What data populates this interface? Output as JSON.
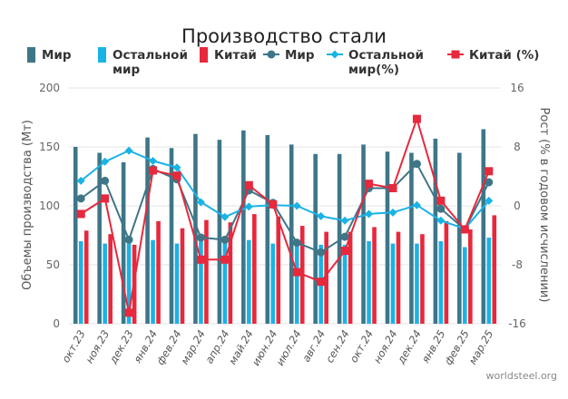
{
  "chart_data": {
    "type": "bar",
    "title": "Производство стали",
    "categories": [
      "окт.23",
      "ноя.23",
      "дек.23",
      "янв.24",
      "фев.24",
      "мар.24",
      "апр.24",
      "май.24",
      "июн.24",
      "июл.24",
      "авг.24",
      "сен.24",
      "окт.24",
      "ноя.24",
      "дек.24",
      "янв.25",
      "фев.25",
      "мар.25"
    ],
    "ylabel_left": "Объемы производства (Мт)",
    "ylabel_right": "Рост (% в годовом исчислении)",
    "ylim_left": [
      0,
      200
    ],
    "yticks_left": [
      "0",
      "50",
      "100",
      "150",
      "200"
    ],
    "ylim_right": [
      -16,
      16
    ],
    "yticks_right": [
      "-16",
      "-8",
      "0",
      "8",
      "16"
    ],
    "grid": "horizontal",
    "legend_position": "top",
    "series": [
      {
        "name": "Мир",
        "kind": "bar",
        "axis": "left",
        "color": "#3e7688",
        "values": [
          150,
          145,
          137,
          158,
          149,
          161,
          156,
          164,
          160,
          152,
          144,
          144,
          152,
          146,
          145,
          157,
          145,
          165
        ]
      },
      {
        "name": "Остальной мир",
        "kind": "bar",
        "axis": "left",
        "color": "#19b3e6",
        "values": [
          70,
          68,
          68,
          71,
          68,
          71,
          69,
          71,
          68,
          70,
          67,
          67,
          70,
          68,
          68,
          70,
          65,
          73
        ]
      },
      {
        "name": "Китай",
        "kind": "bar",
        "axis": "left",
        "color": "#e8283c",
        "values": [
          79,
          76,
          67,
          87,
          81,
          88,
          86,
          93,
          91,
          83,
          78,
          78,
          82,
          78,
          76,
          87,
          80,
          92
        ]
      },
      {
        "name": "Мир",
        "kind": "line",
        "axis": "right",
        "color": "#3e7688",
        "marker": "circle",
        "values": [
          1.0,
          3.4,
          -4.6,
          5.0,
          3.6,
          -4.3,
          -4.6,
          2.1,
          0.4,
          -5.0,
          -6.3,
          -4.2,
          2.4,
          2.4,
          5.7,
          -0.4,
          -3.2,
          3.2
        ]
      },
      {
        "name": "Остальной мир(%)",
        "kind": "line",
        "axis": "right",
        "color": "#19b3e6",
        "marker": "diamond",
        "values": [
          3.4,
          6.0,
          7.5,
          6.1,
          5.2,
          0.5,
          -1.5,
          -0.1,
          0.1,
          0.0,
          -1.4,
          -2.0,
          -1.1,
          -0.9,
          0.1,
          -2.0,
          -3.1,
          0.7
        ]
      },
      {
        "name": "Китай (%)",
        "kind": "line",
        "axis": "right",
        "color": "#e8283c",
        "marker": "square",
        "values": [
          -1.1,
          1.0,
          -14.5,
          4.8,
          4.1,
          -7.3,
          -7.3,
          2.8,
          0.2,
          -9.0,
          -10.3,
          -6.1,
          3.0,
          2.4,
          11.8,
          0.7,
          -3.2,
          4.7
        ]
      }
    ],
    "legend": [
      {
        "label": "Мир",
        "kind": "bar",
        "color": "#3e7688"
      },
      {
        "label": "Остальной мир",
        "kind": "bar",
        "color": "#19b3e6"
      },
      {
        "label": "Китай",
        "kind": "bar",
        "color": "#e8283c"
      },
      {
        "label": "Мир",
        "kind": "line",
        "marker": "circle",
        "color": "#3e7688"
      },
      {
        "label": "Остальной мир(%)",
        "kind": "line",
        "marker": "diamond",
        "color": "#19b3e6"
      },
      {
        "label": "Китай (%)",
        "kind": "line",
        "marker": "square",
        "color": "#e8283c"
      }
    ],
    "source": "worldsteel.org"
  }
}
